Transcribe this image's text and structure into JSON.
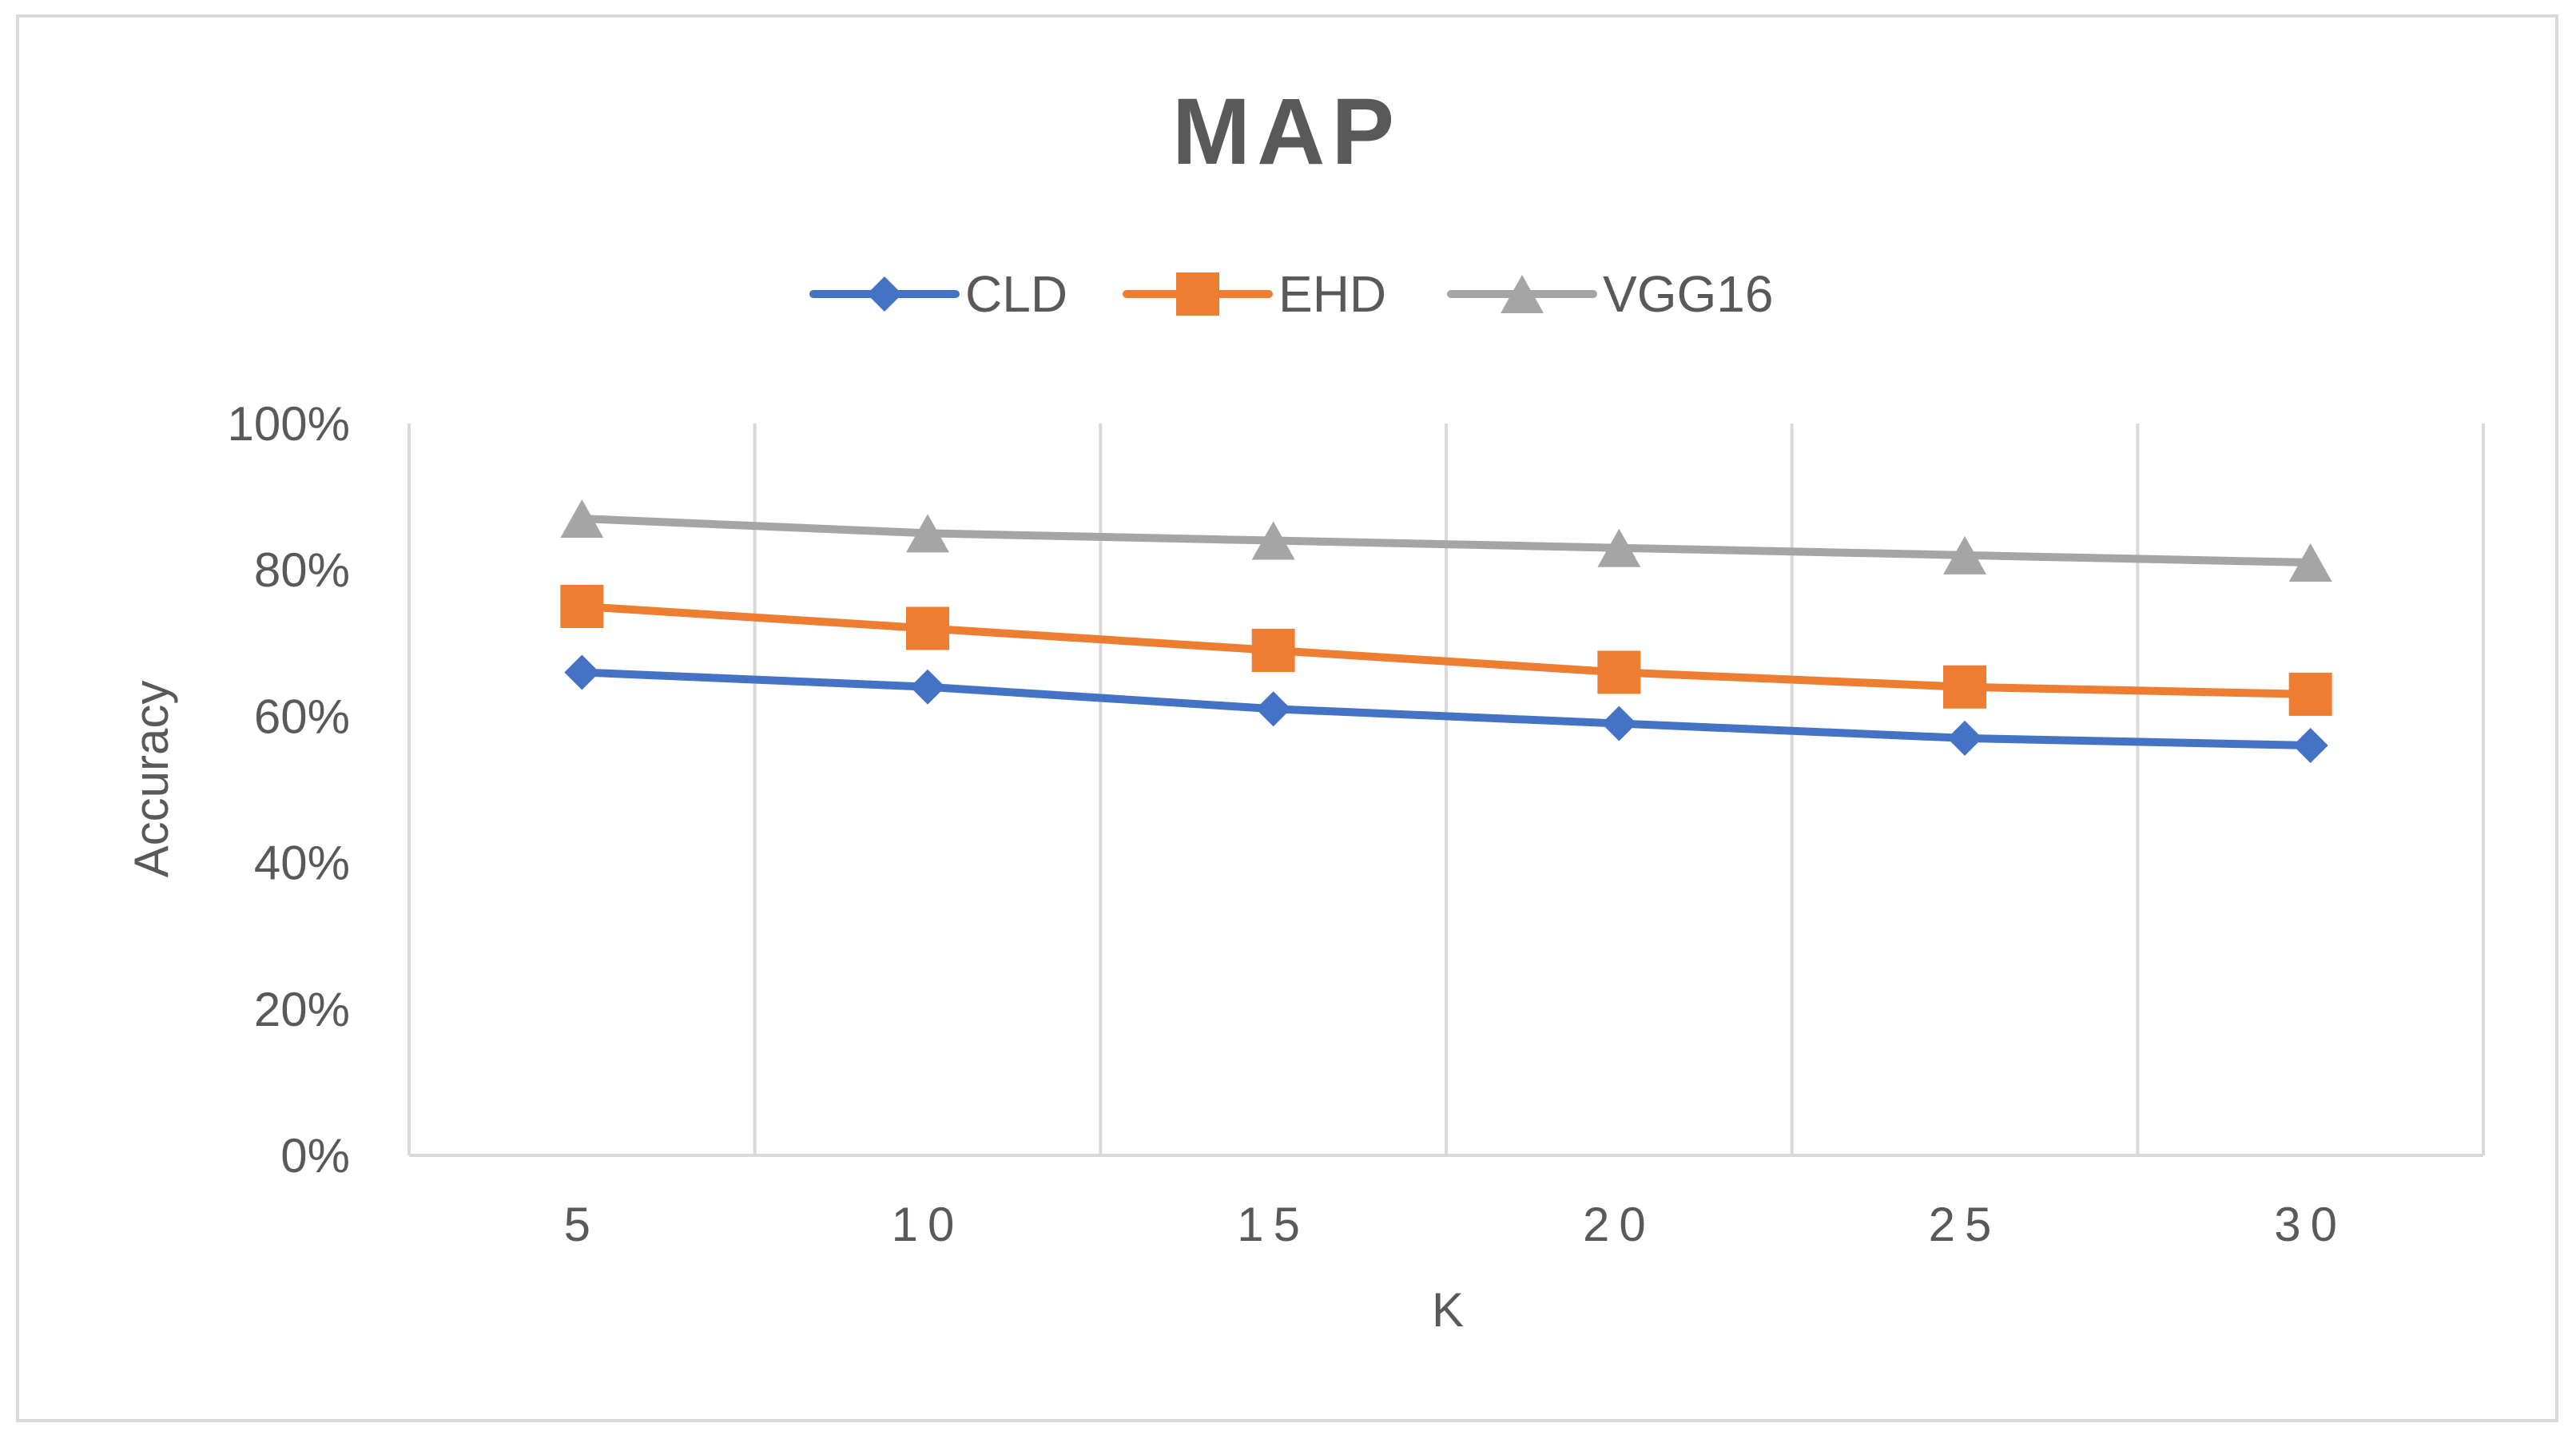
{
  "chart_data": {
    "type": "line",
    "title": "MAP",
    "xlabel": "K",
    "ylabel": "Accuracy",
    "categories": [
      "5",
      "10",
      "15",
      "20",
      "25",
      "30"
    ],
    "ylim": [
      0,
      100
    ],
    "yticks": [
      0,
      20,
      40,
      60,
      80,
      100
    ],
    "ytick_labels": [
      "0%",
      "20%",
      "40%",
      "60%",
      "80%",
      "100%"
    ],
    "grid": "vertical",
    "legend_position": "top",
    "series": [
      {
        "name": "CLD",
        "color": "#4472c4",
        "marker": "diamond",
        "values": [
          66,
          64,
          61,
          59,
          57,
          56
        ]
      },
      {
        "name": "EHD",
        "color": "#ed7d31",
        "marker": "square",
        "values": [
          75,
          72,
          69,
          66,
          64,
          63
        ]
      },
      {
        "name": "VGG16",
        "color": "#a5a5a5",
        "marker": "triangle",
        "values": [
          87,
          85,
          84,
          83,
          82,
          81
        ]
      }
    ]
  }
}
